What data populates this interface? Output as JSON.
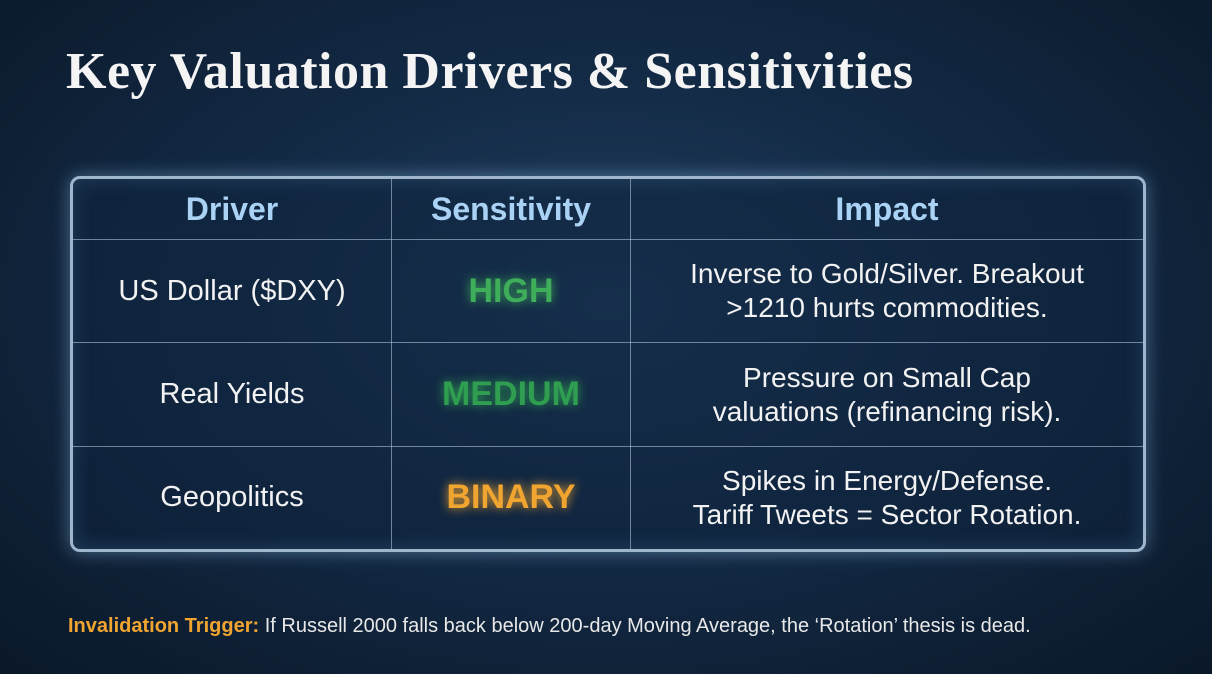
{
  "title": "Key Valuation Drivers & Sensitivities",
  "table": {
    "headers": [
      "Driver",
      "Sensitivity",
      "Impact"
    ],
    "rows": [
      {
        "driver": "US Dollar ($DXY)",
        "sensitivity": "HIGH",
        "color": "#3fae5a",
        "impact": [
          "Inverse to Gold/Silver. Breakout",
          ">1210 hurts commodities."
        ]
      },
      {
        "driver": "Real Yields",
        "sensitivity": "MEDIUM",
        "color": "#2f9e50",
        "impact": [
          "Pressure on Small Cap",
          "valuations (refinancing risk)."
        ]
      },
      {
        "driver": "Geopolitics",
        "sensitivity": "BINARY",
        "color": "#f0a530",
        "impact": [
          "Spikes in Energy/Defense.",
          "Tariff Tweets = Sector Rotation."
        ]
      }
    ]
  },
  "footer": {
    "label": "Invalidation Trigger:",
    "text": "If Russell 2000 falls back below 200-day Moving Average, the ‘Rotation’ thesis is dead."
  }
}
